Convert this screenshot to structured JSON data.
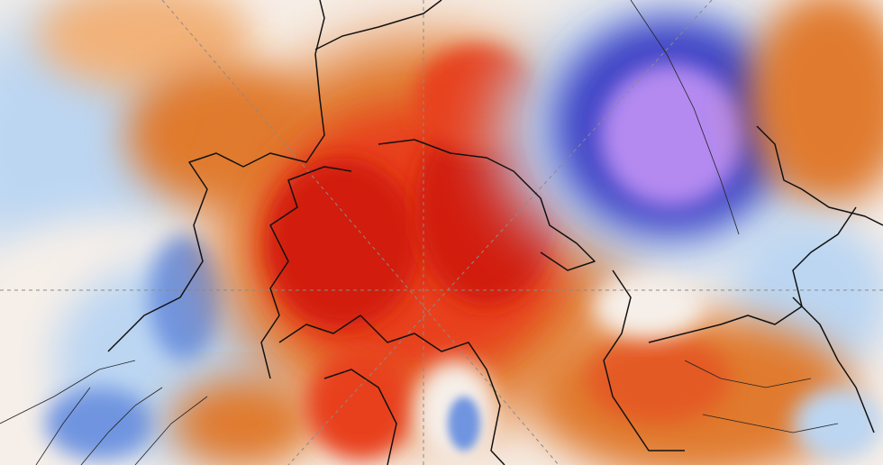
{
  "map": {
    "projection": "polar-stereographic-north",
    "field": "temperature-anomaly",
    "palette": {
      "extreme_warm": "#d21a0a",
      "strong_warm": "#e8401c",
      "warm": "#e07a2e",
      "mild_warm": "#f2b27a",
      "near_normal": "#f6efe9",
      "mild_cold": "#bcd6f2",
      "cold": "#6f94e0",
      "strong_cold": "#3b3fc4",
      "extreme_cold": "#b48af0",
      "coastline": "#111111",
      "graticule": "#8a8a8a",
      "borders": "#222222"
    },
    "features": [
      "warm-anomaly-arctic-ocean",
      "warm-anomaly-greenland",
      "cold-anomaly-siberia",
      "cold-anomaly-north-america-west",
      "warm-anomaly-europe"
    ]
  }
}
